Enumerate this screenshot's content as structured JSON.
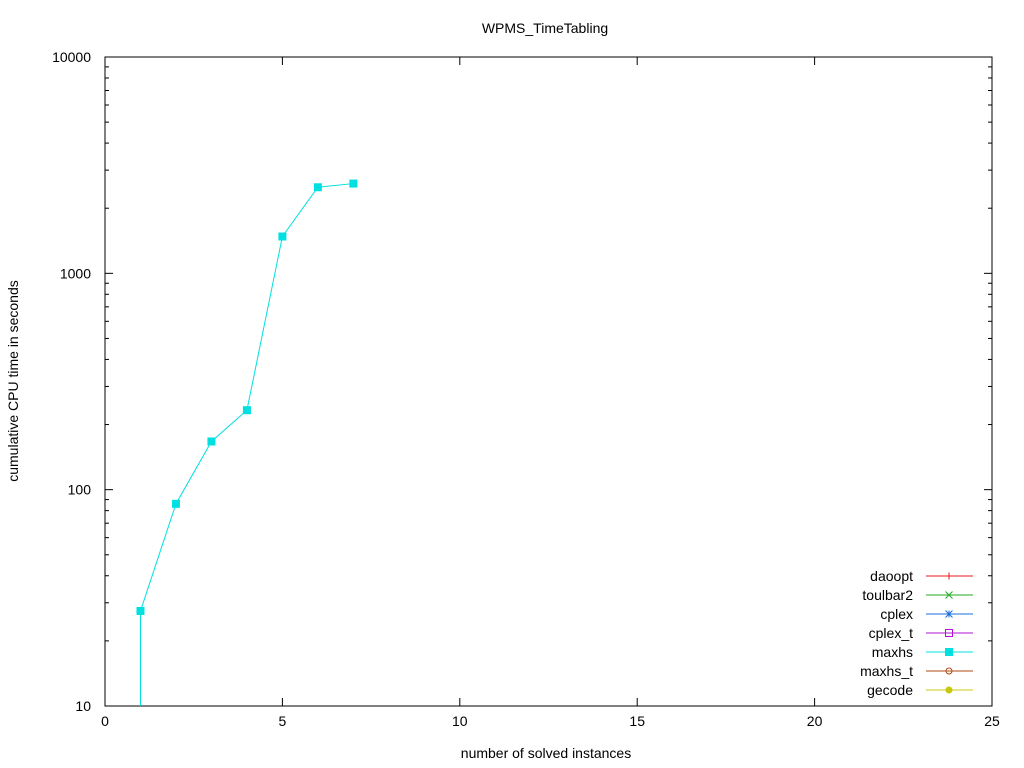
{
  "chart_data": {
    "type": "line",
    "title": "WPMS_TimeTabling",
    "xlabel": "number of solved instances",
    "ylabel": "cumulative CPU time in seconds",
    "xlim": [
      0,
      25
    ],
    "ylim": [
      10,
      10000
    ],
    "yscale": "log",
    "grid": false,
    "legend_position": "bottom-right",
    "x_ticks": [
      0,
      5,
      10,
      15,
      20,
      25
    ],
    "y_ticks": [
      10,
      100,
      1000,
      10000
    ],
    "series": [
      {
        "name": "daoopt",
        "color": "#e41a1c",
        "marker": "plus",
        "x": [],
        "y": []
      },
      {
        "name": "toulbar2",
        "color": "#22aa22",
        "marker": "cross",
        "x": [],
        "y": []
      },
      {
        "name": "cplex",
        "color": "#1a6fdf",
        "marker": "star",
        "x": [],
        "y": []
      },
      {
        "name": "cplex_t",
        "color": "#b010d0",
        "marker": "open-square",
        "x": [],
        "y": []
      },
      {
        "name": "maxhs",
        "color": "#00e0e0",
        "marker": "filled-square",
        "x": [
          1,
          2,
          3,
          4,
          5,
          6,
          7
        ],
        "y": [
          27.5,
          86,
          167,
          233,
          1480,
          2500,
          2600
        ]
      },
      {
        "name": "maxhs_t",
        "color": "#b04a10",
        "marker": "open-circle",
        "x": [],
        "y": []
      },
      {
        "name": "gecode",
        "color": "#c8c810",
        "marker": "filled-circle",
        "x": [],
        "y": []
      }
    ]
  }
}
